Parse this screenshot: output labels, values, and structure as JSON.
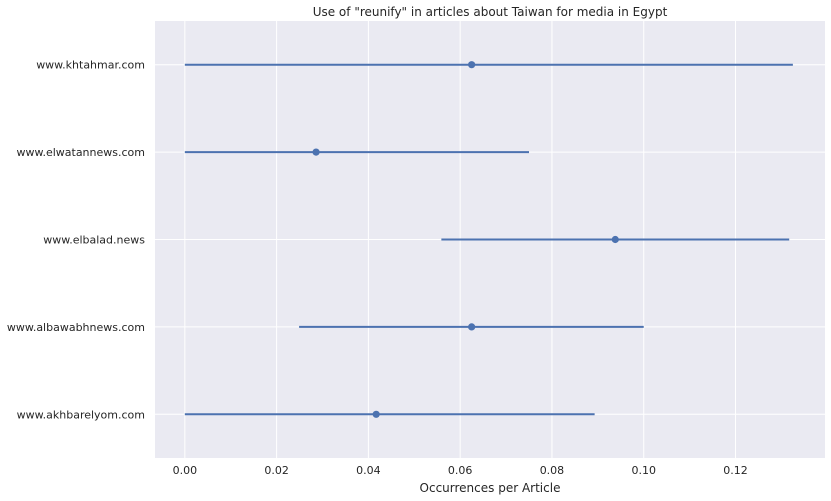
{
  "chart_data": {
    "type": "scatter",
    "title": "Use of \"reunify\" in articles about Taiwan for media in Egypt",
    "xlabel": "Occurrences per Article",
    "ylabel": "",
    "xlim": [
      -0.0065,
      0.1395
    ],
    "xticks": [
      0.0,
      0.02,
      0.04,
      0.06,
      0.08,
      0.1,
      0.12
    ],
    "xtick_labels": [
      "0.00",
      "0.02",
      "0.04",
      "0.06",
      "0.08",
      "0.10",
      "0.12"
    ],
    "grid": true,
    "categories": [
      "www.khtahmar.com",
      "www.elwatannews.com",
      "www.elbalad.news",
      "www.albawabhnews.com",
      "www.akhbarelyom.com"
    ],
    "points": [
      {
        "label": "www.khtahmar.com",
        "value": 0.0625,
        "low": 0.0,
        "high": 0.1325
      },
      {
        "label": "www.elwatannews.com",
        "value": 0.0286,
        "low": 0.0,
        "high": 0.075
      },
      {
        "label": "www.elbalad.news",
        "value": 0.0938,
        "low": 0.0559,
        "high": 0.1317
      },
      {
        "label": "www.albawabhnews.com",
        "value": 0.0625,
        "low": 0.0249,
        "high": 0.1
      },
      {
        "label": "www.akhbarelyom.com",
        "value": 0.0417,
        "low": 0.0,
        "high": 0.0893
      }
    ],
    "colors": {
      "background": "#eaeaf2",
      "grid": "#ffffff",
      "series": "#4c72b0"
    }
  }
}
